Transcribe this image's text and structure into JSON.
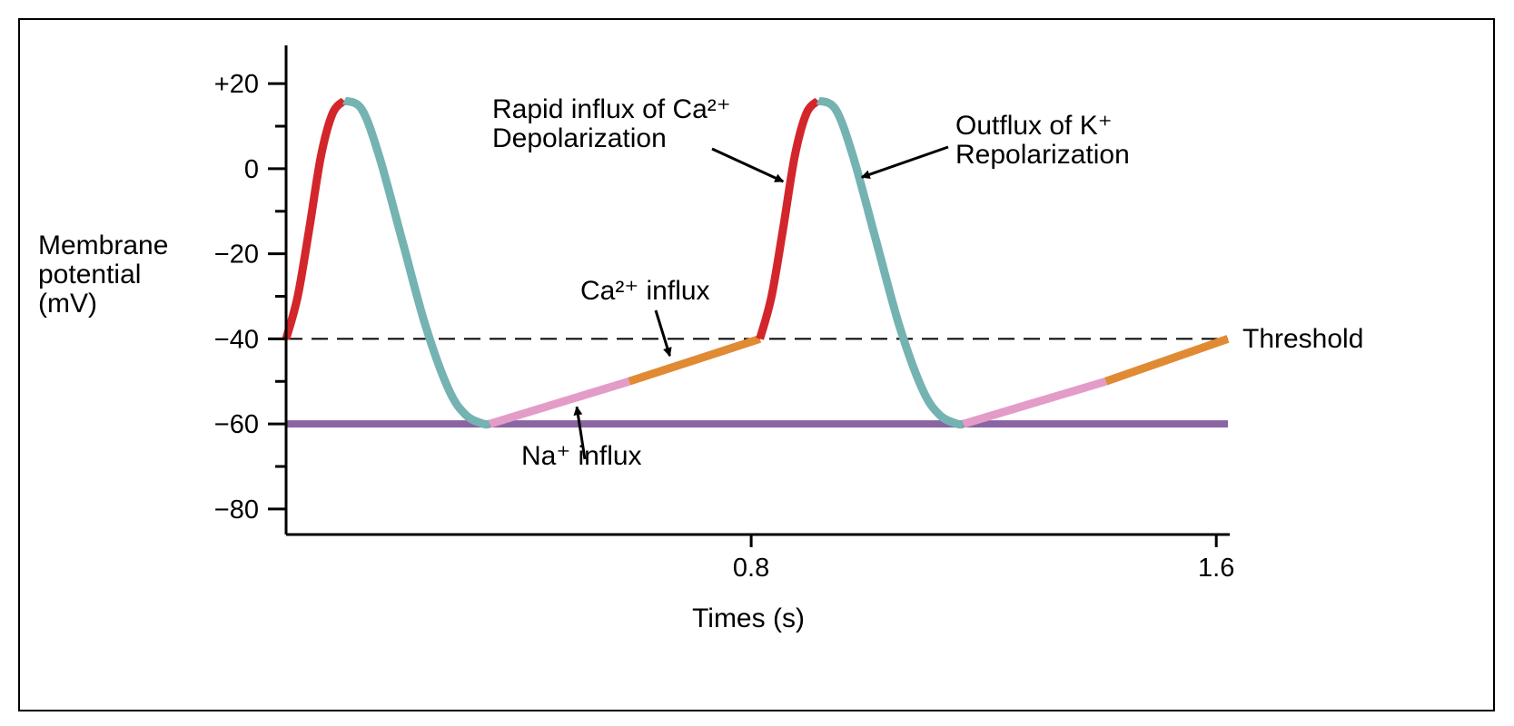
{
  "chart_data": {
    "type": "line",
    "title": "",
    "xlabel": "Times (s)",
    "ylabel_lines": [
      "Membrane",
      "potential",
      "(mV)"
    ],
    "x_ticks": [
      {
        "value": 0.8,
        "label": "0.8"
      },
      {
        "value": 1.6,
        "label": "1.6"
      }
    ],
    "y_ticks": [
      {
        "value": 20,
        "label": "+20"
      },
      {
        "value": 0,
        "label": "0"
      },
      {
        "value": -20,
        "label": "−20"
      },
      {
        "value": -40,
        "label": "−40"
      },
      {
        "value": -60,
        "label": "−60"
      },
      {
        "value": -80,
        "label": "−80"
      }
    ],
    "y_minor_ticks": [
      10,
      -10,
      -30,
      -50,
      -70
    ],
    "xlim": [
      0,
      1.62
    ],
    "ylim": [
      -86,
      29
    ],
    "grid": false,
    "threshold": {
      "value": -40,
      "label": "Threshold"
    },
    "resting_line": {
      "value": -60
    },
    "series": [
      {
        "phase": "depolarization",
        "color": "#d3262b",
        "x": [
          0,
          0.02,
          0.04,
          0.06,
          0.08,
          0.1
        ],
        "y": [
          -40,
          -30,
          -14,
          3,
          13,
          16
        ]
      },
      {
        "phase": "repolarization",
        "color": "#74b3b2",
        "x": [
          0.1,
          0.13,
          0.16,
          0.2,
          0.24,
          0.28,
          0.31,
          0.34,
          0.35
        ],
        "y": [
          16,
          14,
          3,
          -17,
          -37,
          -52,
          -58,
          -60,
          -60
        ]
      },
      {
        "phase": "na-influx",
        "color": "#e39cc7",
        "x": [
          0.35,
          0.59
        ],
        "y": [
          -60,
          -50
        ]
      },
      {
        "phase": "ca-influx",
        "color": "#e08a34",
        "x": [
          0.59,
          0.815
        ],
        "y": [
          -50,
          -40
        ]
      },
      {
        "phase": "depolarization",
        "color": "#d3262b",
        "x": [
          0.815,
          0.835,
          0.855,
          0.875,
          0.895,
          0.915
        ],
        "y": [
          -40,
          -30,
          -14,
          3,
          13,
          16
        ]
      },
      {
        "phase": "repolarization",
        "color": "#74b3b2",
        "x": [
          0.915,
          0.945,
          0.975,
          1.015,
          1.055,
          1.095,
          1.125,
          1.155,
          1.165
        ],
        "y": [
          16,
          14,
          3,
          -17,
          -37,
          -52,
          -58,
          -60,
          -60
        ]
      },
      {
        "phase": "na-influx",
        "color": "#e39cc7",
        "x": [
          1.165,
          1.41
        ],
        "y": [
          -60,
          -50
        ]
      },
      {
        "phase": "ca-influx",
        "color": "#e08a34",
        "x": [
          1.41,
          1.62
        ],
        "y": [
          -50,
          -40
        ]
      }
    ],
    "resting_color": "#8a64a3",
    "annotations": [
      {
        "id": "rapid-influx",
        "lines": [
          "Rapid influx of Ca²⁺",
          "Depolarization"
        ],
        "arrow_to": {
          "x": 0.855,
          "y": -3
        }
      },
      {
        "id": "outflux-k",
        "lines": [
          "Outflux of K⁺",
          "Repolarization"
        ],
        "arrow_to": {
          "x": 0.99,
          "y": -2
        }
      },
      {
        "id": "ca-influx",
        "lines": [
          "Ca²⁺ influx"
        ],
        "arrow_to": {
          "x": 0.66,
          "y": -44
        }
      },
      {
        "id": "na-influx",
        "lines": [
          "Na⁺ influx"
        ],
        "arrow_to": {
          "x": 0.5,
          "y": -56
        }
      }
    ]
  }
}
